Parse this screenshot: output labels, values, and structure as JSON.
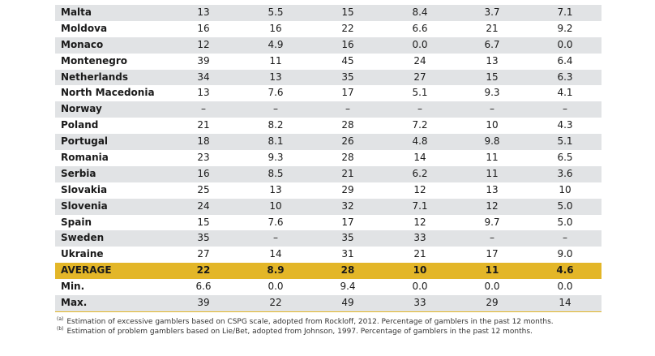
{
  "table": {
    "rows": [
      [
        "Malta",
        "13",
        "5.5",
        "15",
        "8.4",
        "3.7",
        "7.1"
      ],
      [
        "Moldova",
        "16",
        "16",
        "22",
        "6.6",
        "21",
        "9.2"
      ],
      [
        "Monaco",
        "12",
        "4.9",
        "16",
        "0.0",
        "6.7",
        "0.0"
      ],
      [
        "Montenegro",
        "39",
        "11",
        "45",
        "24",
        "13",
        "6.4"
      ],
      [
        "Netherlands",
        "34",
        "13",
        "35",
        "27",
        "15",
        "6.3"
      ],
      [
        "North Macedonia",
        "13",
        "7.6",
        "17",
        "5.1",
        "9.3",
        "4.1"
      ],
      [
        "Norway",
        "–",
        "–",
        "–",
        "–",
        "–",
        "–"
      ],
      [
        "Poland",
        "21",
        "8.2",
        "28",
        "7.2",
        "10",
        "4.3"
      ],
      [
        "Portugal",
        "18",
        "8.1",
        "26",
        "4.8",
        "9.8",
        "5.1"
      ],
      [
        "Romania",
        "23",
        "9.3",
        "28",
        "14",
        "11",
        "6.5"
      ],
      [
        "Serbia",
        "16",
        "8.5",
        "21",
        "6.2",
        "11",
        "3.6"
      ],
      [
        "Slovakia",
        "25",
        "13",
        "29",
        "12",
        "13",
        "10"
      ],
      [
        "Slovenia",
        "24",
        "10",
        "32",
        "7.1",
        "12",
        "5.0"
      ],
      [
        "Spain",
        "15",
        "7.6",
        "17",
        "12",
        "9.7",
        "5.0"
      ],
      [
        "Sweden",
        "35",
        "–",
        "35",
        "33",
        "–",
        "–"
      ],
      [
        "Ukraine",
        "27",
        "14",
        "31",
        "21",
        "17",
        "9.0"
      ],
      [
        "AVERAGE",
        "22",
        "8.9",
        "28",
        "10",
        "11",
        "4.6"
      ],
      [
        "Min.",
        "6.6",
        "0.0",
        "9.4",
        "0.0",
        "0.0",
        "0.0"
      ],
      [
        "Max.",
        "39",
        "22",
        "49",
        "33",
        "29",
        "14"
      ]
    ]
  },
  "footnotes": [
    {
      "marker": "(a)",
      "text": "Estimation of excessive gamblers based on CSPG scale, adopted from Rockloff,  2012. Percentage of gamblers in the past 12 months."
    },
    {
      "marker": "(b)",
      "text": "Estimation of problem gamblers based on Lie/Bet, adopted from Johnson, 1997. Percentage of gamblers in the past 12 months."
    }
  ]
}
